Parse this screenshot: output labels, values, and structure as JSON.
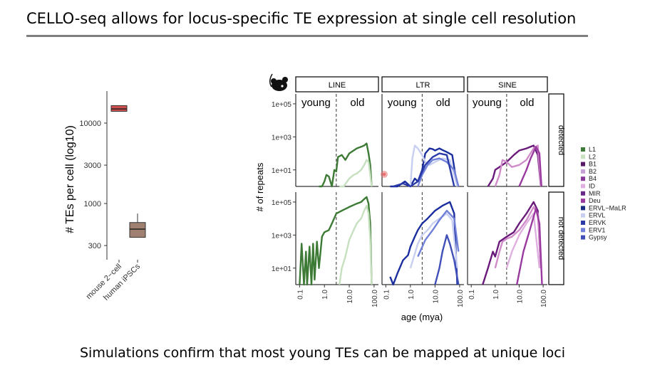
{
  "slide": {
    "title": "CELLO-seq allows for locus-specific TE expression at single cell resolution",
    "footer": "Simulations confirm that most young TEs can be mapped at unique loci"
  },
  "colors": {
    "rule": "#7f7f7f",
    "mouse_box": "#d05050",
    "human_box": "#a08070",
    "line_green": "#3d7a35",
    "line_green_light": "#c6e0c0",
    "ltr_blue_dark": "#1a2ea0",
    "ltr_blue_light": "#c8cff0",
    "sine_purple_dark": "#6a1a7a",
    "sine_pink": "#d08cc8",
    "marker": "#e86b6b"
  },
  "chart_data": [
    {
      "type": "box",
      "ylabel": "# TEs per cell (log10)",
      "yscale": "log10",
      "ylim": [
        200,
        25000
      ],
      "yticks": [
        "10000",
        "3000",
        "1000",
        "300"
      ],
      "ytick_values": [
        10000,
        3000,
        1000,
        300
      ],
      "categories": [
        "mouse 2−cell",
        "human iPSCs"
      ],
      "boxes": [
        {
          "min": 14000,
          "q1": 14000,
          "median": 15000,
          "q3": 16500,
          "max": 16500
        },
        {
          "min": 380,
          "q1": 380,
          "median": 480,
          "q3": 580,
          "max": 750
        }
      ]
    },
    {
      "type": "line",
      "xlabel": "age (mya)",
      "ylabel": "# of repeats",
      "xscale": "log10",
      "yscale": "log10",
      "xticks": [
        "0.1",
        "1.0",
        "10.0",
        "100.0"
      ],
      "xtick_values": [
        0.1,
        1,
        10,
        100
      ],
      "yticks": [
        "1e+05",
        "1e+03",
        "1e+01"
      ],
      "ytick_values": [
        100000,
        1000,
        10
      ],
      "threshold_mya": 3,
      "panel_columns": [
        "LINE",
        "LTR",
        "SINE"
      ],
      "panel_rows": [
        "detected",
        "not detected"
      ],
      "region_labels": {
        "young": "young",
        "old": "old"
      },
      "legend": [
        "L1",
        "L2",
        "B1",
        "B2",
        "B4",
        "ID",
        "MIR",
        "Deu",
        "ERVL−MaLR",
        "ERVL",
        "ERVK",
        "ERV1",
        "Gypsy"
      ],
      "legend_colors": [
        "#3d7a35",
        "#c6e0c0",
        "#5a1a6a",
        "#c8a0d8",
        "#8a3a9a",
        "#e0b0e0",
        "#6a2a8a",
        "#9a3aa0",
        "#1a2e80",
        "#c8cff0",
        "#2a3aa8",
        "#7080d8",
        "#4050b8"
      ],
      "series": [
        {
          "name": "L1",
          "panel": "LINE|detected",
          "color": "#3d7a35",
          "x": [
            0.6,
            0.8,
            1.0,
            1.2,
            1.5,
            2.0,
            2.5,
            3.0,
            3.5,
            5,
            7,
            10,
            15,
            20,
            30,
            40,
            50,
            60,
            70,
            80
          ],
          "y": [
            0.5,
            1,
            2,
            5,
            4,
            1,
            10,
            8,
            60,
            80,
            40,
            100,
            150,
            200,
            250,
            300,
            400,
            100,
            20,
            0.5
          ]
        },
        {
          "name": "L2",
          "panel": "LINE|detected",
          "color": "#c6e0c0",
          "x": [
            4,
            6,
            10,
            15,
            20,
            30,
            40,
            50,
            60,
            70,
            80
          ],
          "y": [
            0.5,
            1,
            3,
            5,
            6,
            10,
            20,
            40,
            30,
            5,
            0.5
          ]
        },
        {
          "name": "L1",
          "panel": "LINE|not detected",
          "color": "#3d7a35",
          "x": [
            0.1,
            0.12,
            0.15,
            0.18,
            0.2,
            0.25,
            0.3,
            0.35,
            0.4,
            0.5,
            0.6,
            0.8,
            1.0,
            1.5,
            2.0,
            3.0,
            5,
            10,
            20,
            30,
            40,
            50,
            60,
            70,
            80
          ],
          "y": [
            1,
            300,
            1,
            100,
            1,
            200,
            1,
            300,
            2,
            400,
            10,
            800,
            1500,
            2000,
            5000,
            20000,
            30000,
            50000,
            80000,
            100000,
            150000,
            200000,
            80000,
            5000,
            1
          ]
        },
        {
          "name": "L2",
          "panel": "LINE|not detected",
          "color": "#c6e0c0",
          "x": [
            4,
            5,
            7,
            10,
            15,
            20,
            30,
            40,
            50,
            60,
            70,
            80
          ],
          "y": [
            1,
            10,
            50,
            500,
            2000,
            5000,
            10000,
            30000,
            60000,
            20000,
            500,
            1
          ]
        },
        {
          "name": "ERVK",
          "panel": "LTR|detected",
          "color": "#1a2ea0",
          "x": [
            0.15,
            0.3,
            0.6,
            1.0,
            1.5,
            2,
            3,
            4,
            6,
            8,
            10,
            15,
            20,
            30,
            50,
            80
          ],
          "y": [
            1,
            1,
            2,
            1,
            3,
            2,
            10,
            100,
            200,
            180,
            150,
            200,
            160,
            120,
            80,
            1
          ]
        },
        {
          "name": "ERVL",
          "panel": "LTR|detected",
          "color": "#c8cff0",
          "x": [
            1.0,
            1.2,
            1.5,
            2,
            3,
            4,
            6,
            10,
            20,
            40,
            80
          ],
          "y": [
            1,
            50,
            300,
            200,
            80,
            30,
            20,
            30,
            50,
            40,
            1
          ]
        },
        {
          "name": "ERV1",
          "panel": "LTR|detected",
          "color": "#7080d8",
          "x": [
            2,
            3,
            5,
            8,
            15,
            30,
            60,
            90
          ],
          "y": [
            1,
            5,
            20,
            40,
            50,
            30,
            10,
            1
          ]
        },
        {
          "name": "ERVL−MaLR",
          "panel": "LTR|detected",
          "color": "#2a3aa8",
          "x": [
            0.2,
            0.5,
            1,
            2,
            4,
            8,
            15,
            30,
            60
          ],
          "y": [
            1,
            1.5,
            1,
            2,
            20,
            60,
            100,
            80,
            1
          ]
        },
        {
          "name": "ERVK",
          "panel": "LTR|not detected",
          "color": "#1a2ea0",
          "x": [
            0.15,
            0.2,
            0.3,
            0.5,
            0.8,
            1.0,
            1.5,
            2,
            3,
            5,
            10,
            20,
            40,
            60,
            80
          ],
          "y": [
            3,
            1,
            5,
            30,
            60,
            200,
            800,
            2000,
            5000,
            10000,
            30000,
            60000,
            100000,
            20000,
            1
          ]
        },
        {
          "name": "ERVL",
          "panel": "LTR|not detected",
          "color": "#c8cff0",
          "x": [
            1,
            2,
            3,
            5,
            8,
            15,
            30,
            50,
            80
          ],
          "y": [
            10,
            300,
            1000,
            2000,
            5000,
            10000,
            20000,
            8000,
            10
          ]
        },
        {
          "name": "ERV1",
          "panel": "LTR|not detected",
          "color": "#7080d8",
          "x": [
            2,
            4,
            8,
            15,
            30,
            60,
            90
          ],
          "y": [
            50,
            500,
            2000,
            8000,
            30000,
            10000,
            100
          ]
        },
        {
          "name": "Gypsy",
          "panel": "LTR|not detected",
          "color": "#4050b8",
          "x": [
            10,
            15,
            20,
            30,
            40,
            60,
            90
          ],
          "y": [
            1,
            10,
            100,
            1000,
            300,
            30,
            1
          ]
        },
        {
          "name": "B1",
          "panel": "SINE|detected",
          "color": "#6a1a7a",
          "x": [
            0.5,
            0.8,
            1.0,
            1.5,
            3,
            6,
            10,
            20,
            40,
            60,
            80
          ],
          "y": [
            1,
            3,
            10,
            15,
            30,
            80,
            150,
            200,
            300,
            80,
            1
          ]
        },
        {
          "name": "B2",
          "panel": "SINE|detected",
          "color": "#d08cc8",
          "x": [
            1.0,
            1.5,
            2,
            3,
            5,
            10,
            20,
            40,
            60,
            80
          ],
          "y": [
            1,
            5,
            40,
            30,
            15,
            20,
            40,
            200,
            300,
            1
          ]
        },
        {
          "name": "B4",
          "panel": "SINE|detected",
          "color": "#9a3aa0",
          "x": [
            10,
            20,
            30,
            50,
            70,
            85
          ],
          "y": [
            1,
            10,
            50,
            250,
            100,
            1
          ]
        },
        {
          "name": "B1",
          "panel": "SINE|not detected",
          "color": "#6a1a7a",
          "x": [
            0.3,
            0.5,
            0.8,
            1.0,
            1.5,
            3,
            6,
            10,
            20,
            40,
            60,
            80
          ],
          "y": [
            1,
            10,
            100,
            50,
            400,
            800,
            1500,
            5000,
            20000,
            100000,
            30000,
            10
          ]
        },
        {
          "name": "B2",
          "panel": "SINE|not detected",
          "color": "#d08cc8",
          "x": [
            1.0,
            1.5,
            2,
            3,
            5,
            10,
            20,
            40,
            60,
            80
          ],
          "y": [
            10,
            100,
            400,
            600,
            800,
            2000,
            8000,
            50000,
            20000,
            10
          ]
        },
        {
          "name": "ID",
          "panel": "SINE|not detected",
          "color": "#e0b0e0",
          "x": [
            3,
            5,
            10,
            20,
            40,
            70
          ],
          "y": [
            10,
            100,
            1000,
            5000,
            20000,
            10
          ]
        },
        {
          "name": "B4",
          "panel": "SINE|not detected",
          "color": "#9a3aa0",
          "x": [
            8,
            15,
            30,
            50,
            70,
            90
          ],
          "y": [
            1,
            100,
            3000,
            40000,
            5000,
            1
          ]
        }
      ]
    }
  ]
}
